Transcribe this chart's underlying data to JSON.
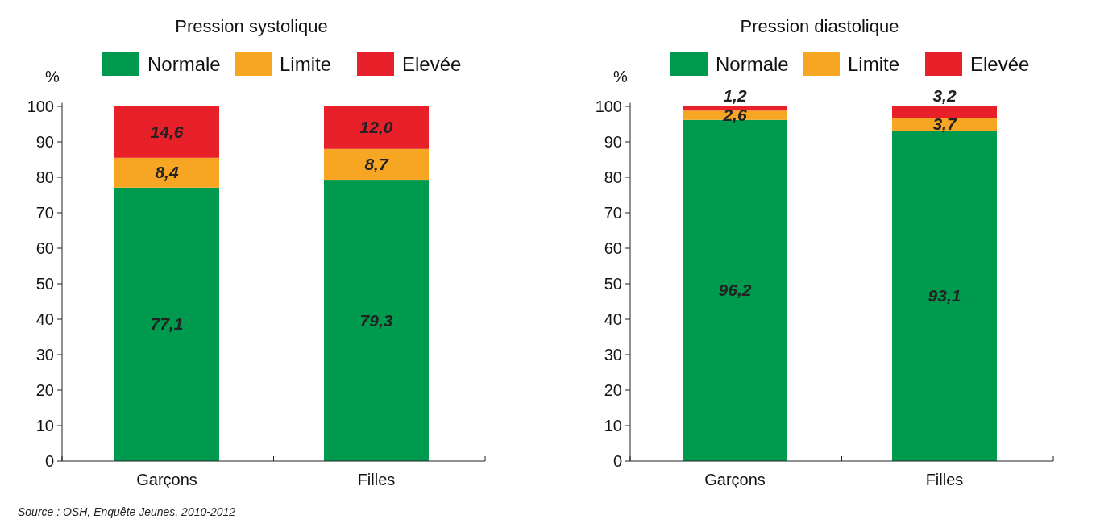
{
  "chart_data": [
    {
      "type": "bar",
      "title": "Pression systolique",
      "ylabel": "%",
      "stacked": true,
      "legend": "top",
      "grid": false,
      "categories": [
        "Garçons",
        "Filles"
      ],
      "series": [
        {
          "name": "Normale",
          "color": "#009a4e",
          "values": [
            77.1,
            79.3
          ],
          "value_labels": [
            "77,1",
            "79,3"
          ]
        },
        {
          "name": "Limite",
          "color": "#f6a623",
          "values": [
            8.4,
            8.7
          ],
          "value_labels": [
            "8,4",
            "8,7"
          ]
        },
        {
          "name": "Elevée",
          "color": "#e8202a",
          "values": [
            14.6,
            12.0
          ],
          "value_labels": [
            "14,6",
            "12,0"
          ]
        }
      ],
      "ylim": [
        0,
        101
      ],
      "yticks": [
        0,
        10,
        20,
        30,
        40,
        50,
        60,
        70,
        80,
        90,
        100
      ],
      "annotations": [
        "Source : OSH, Enquête Jeunes, 2010-2012"
      ]
    },
    {
      "type": "bar",
      "title": "Pression diastolique",
      "ylabel": "%",
      "stacked": true,
      "legend": "top",
      "grid": false,
      "categories": [
        "Garçons",
        "Filles"
      ],
      "series": [
        {
          "name": "Normale",
          "color": "#009a4e",
          "values": [
            96.2,
            93.1
          ],
          "value_labels": [
            "96,2",
            "93,1"
          ]
        },
        {
          "name": "Limite",
          "color": "#f6a623",
          "values": [
            2.6,
            3.7
          ],
          "value_labels": [
            "2,6",
            "3,7"
          ]
        },
        {
          "name": "Elevée",
          "color": "#e8202a",
          "values": [
            1.2,
            3.2
          ],
          "value_labels": [
            "1,2",
            "3,2"
          ]
        }
      ],
      "ylim": [
        0,
        101
      ],
      "yticks": [
        0,
        10,
        20,
        30,
        40,
        50,
        60,
        70,
        80,
        90,
        100
      ]
    }
  ]
}
